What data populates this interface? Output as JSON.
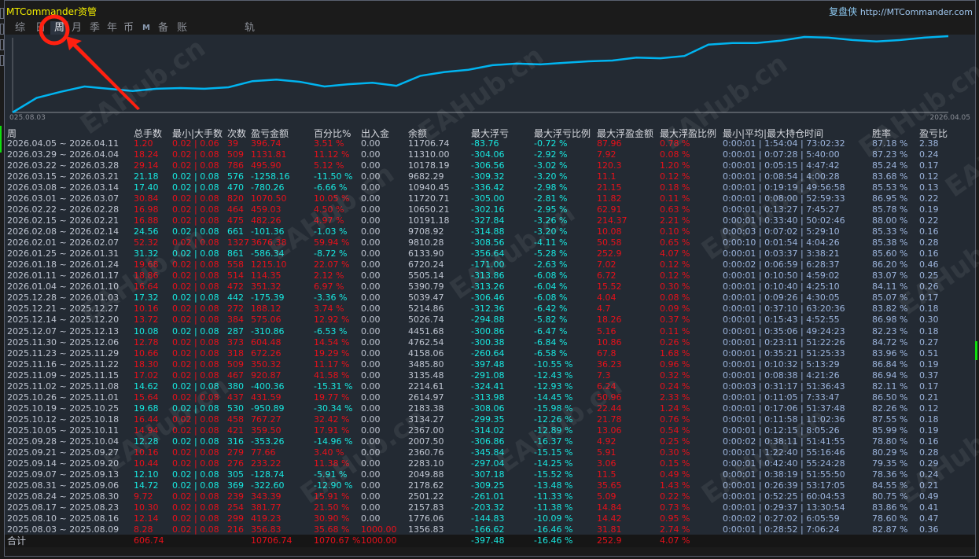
{
  "app": {
    "title": "MTCommander资管",
    "brand": "复盘侠",
    "url": "http://MTCommander.com"
  },
  "tabs": [
    {
      "label": "综",
      "active": false
    },
    {
      "label": "日",
      "active": false
    },
    {
      "label": "周",
      "active": true
    },
    {
      "label": "月",
      "active": false
    },
    {
      "label": "季",
      "active": false
    },
    {
      "label": "年",
      "active": false
    },
    {
      "label": "币",
      "active": false
    },
    {
      "label": "M",
      "active": false
    },
    {
      "label": "备",
      "active": false
    },
    {
      "label": "账户",
      "active": false
    },
    {
      "label": "轨迹",
      "active": false
    }
  ],
  "chart_data": {
    "type": "line",
    "color": "#00b4f0",
    "x_start_label": "025.08.03",
    "x_end_label": "2026.04.05",
    "values": [
      0,
      19,
      27,
      34,
      31,
      28,
      31,
      32,
      31,
      33,
      41,
      43,
      40,
      34,
      37,
      39,
      35,
      48,
      53,
      56,
      62,
      64,
      63,
      65,
      67,
      68,
      72,
      71,
      74,
      89,
      91,
      91,
      94,
      99,
      98,
      95,
      93,
      95,
      98,
      100
    ]
  },
  "colors": {
    "profit": "#e8101a",
    "loss": "#18e8e0",
    "accent": "#f5f000"
  },
  "watermark": "EAHub.cn",
  "table": {
    "headers": [
      "周",
      "总手数",
      "最小|大手数",
      "次数",
      "盈亏金额",
      "百分比%",
      "出入金",
      "余额",
      "最大浮亏",
      "最大浮亏比例",
      "最大浮盈金额",
      "最大浮盈比例",
      "最小|平均|最大持仓时间",
      "胜率",
      "盈亏比"
    ],
    "rows": [
      [
        "2026.04.05 ~ 2026.04.11",
        "1.20",
        "0.02 | 0.06",
        "39",
        "396.74",
        "3.51 %",
        "0.00",
        "11706.74",
        "-83.76",
        "-0.72 %",
        "87.96",
        "0.78 %",
        "0:00:01 | 1:54:04 | 73:02:32",
        "87.18 %",
        "2.38"
      ],
      [
        "2026.03.29 ~ 2026.04.04",
        "18.24",
        "0.02 | 0.08",
        "509",
        "1131.81",
        "11.12 %",
        "0.00",
        "11310.00",
        "-304.06",
        "-2.92 %",
        "7.92",
        "0.08 %",
        "0:00:01 | 0:07:28 | 5:40:00",
        "87.23 %",
        "0.24"
      ],
      [
        "2026.03.22 ~ 2026.03.28",
        "29.14",
        "0.02 | 0.08",
        "786",
        "495.90",
        "5.12 %",
        "0.00",
        "10178.19",
        "-306.56",
        "-3.02 %",
        "120.3",
        "1.20 %",
        "0:00:01 | 0:05:15 | 4:47:42",
        "85.24 %",
        "0.17"
      ],
      [
        "2026.03.15 ~ 2026.03.21",
        "21.18",
        "0.02 | 0.08",
        "576",
        "-1258.16",
        "-11.50 %",
        "0.00",
        "9682.29",
        "-309.32",
        "-3.20 %",
        "11.1",
        "0.12 %",
        "0:00:01 | 0:08:54 | 4:00:28",
        "83.68 %",
        "0.12"
      ],
      [
        "2026.03.08 ~ 2026.03.14",
        "17.40",
        "0.02 | 0.08",
        "470",
        "-780.26",
        "-6.66 %",
        "0.00",
        "10940.45",
        "-336.42",
        "-2.98 %",
        "21.15",
        "0.18 %",
        "0:00:01 | 0:19:19 | 49:56:58",
        "85.53 %",
        "0.13"
      ],
      [
        "2026.03.01 ~ 2026.03.07",
        "30.84",
        "0.02 | 0.08",
        "820",
        "1070.50",
        "10.05 %",
        "0.00",
        "11720.71",
        "-305.00",
        "-2.81 %",
        "11.82",
        "0.11 %",
        "0:00:01 | 0:08:00 | 52:59:33",
        "86.95 %",
        "0.22"
      ],
      [
        "2026.02.22 ~ 2026.02.28",
        "16.98",
        "0.02 | 0.08",
        "464",
        "459.03",
        "4.50 %",
        "0.00",
        "10650.21",
        "-302.16",
        "-2.95 %",
        "62.91",
        "0.63 %",
        "0:00:01 | 0:13:27 | 7:45:27",
        "85.78 %",
        "0.19"
      ],
      [
        "2026.02.15 ~ 2026.02.21",
        "16.88",
        "0.02 | 0.08",
        "475",
        "482.26",
        "4.97 %",
        "0.00",
        "10191.18",
        "-327.84",
        "-3.26 %",
        "214.37",
        "2.21 %",
        "0:00:01 | 0:33:40 | 50:02:46",
        "88.00 %",
        "0.22"
      ],
      [
        "2026.02.08 ~ 2026.02.14",
        "24.56",
        "0.02 | 0.08",
        "661",
        "-101.36",
        "-1.03 %",
        "0.00",
        "9708.92",
        "-314.88",
        "-3.20 %",
        "10.08",
        "0.10 %",
        "0:00:03 | 0:07:02 | 5:29:10",
        "85.33 %",
        "0.16"
      ],
      [
        "2026.02.01 ~ 2026.02.07",
        "52.32",
        "0.02 | 0.08",
        "1327",
        "3676.38",
        "59.94 %",
        "0.00",
        "9810.28",
        "-308.56",
        "-4.11 %",
        "50.58",
        "0.65 %",
        "0:00:10 | 0:01:54 | 4:04:26",
        "85.38 %",
        "0.28"
      ],
      [
        "2026.01.25 ~ 2026.01.31",
        "31.32",
        "0.02 | 0.08",
        "861",
        "-586.34",
        "-8.72 %",
        "0.00",
        "6133.90",
        "-356.64",
        "-5.28 %",
        "252.9",
        "4.07 %",
        "0:00:01 | 0:03:37 | 3:38:21",
        "85.60 %",
        "0.16"
      ],
      [
        "2026.01.18 ~ 2026.01.24",
        "19.68",
        "0.02 | 0.08",
        "558",
        "1215.10",
        "22.07 %",
        "0.00",
        "6720.24",
        "-171.00",
        "-2.63 %",
        "7.02",
        "0.12 %",
        "0:00:02 | 0:06:59 | 6:28:37",
        "86.20 %",
        "0.46"
      ],
      [
        "2026.01.11 ~ 2026.01.17",
        "18.86",
        "0.02 | 0.08",
        "514",
        "114.35",
        "2.12 %",
        "0.00",
        "5505.14",
        "-313.86",
        "-6.08 %",
        "6.72",
        "0.12 %",
        "0:00:01 | 0:10:50 | 4:59:02",
        "83.07 %",
        "0.25"
      ],
      [
        "2026.01.04 ~ 2026.01.10",
        "16.64",
        "0.02 | 0.08",
        "472",
        "351.32",
        "6.97 %",
        "0.00",
        "5390.79",
        "-313.26",
        "-6.04 %",
        "15.52",
        "0.30 %",
        "0:00:01 | 0:10:40 | 4:25:10",
        "84.11 %",
        "0.26"
      ],
      [
        "2025.12.28 ~ 2026.01.03",
        "17.32",
        "0.02 | 0.08",
        "442",
        "-175.39",
        "-3.36 %",
        "0.00",
        "5039.47",
        "-306.46",
        "-6.08 %",
        "4.04",
        "0.08 %",
        "0:00:01 | 0:09:26 | 4:30:05",
        "85.07 %",
        "0.17"
      ],
      [
        "2025.12.21 ~ 2025.12.27",
        "10.16",
        "0.02 | 0.08",
        "272",
        "188.12",
        "3.74 %",
        "0.00",
        "5214.86",
        "-312.36",
        "-6.42 %",
        "4.7",
        "0.09 %",
        "0:00:01 | 0:37:10 | 63:20:36",
        "83.82 %",
        "0.18"
      ],
      [
        "2025.12.14 ~ 2025.12.20",
        "13.72",
        "0.02 | 0.08",
        "384",
        "575.06",
        "12.92 %",
        "0.00",
        "5026.74",
        "-294.88",
        "-5.82 %",
        "18.26",
        "0.37 %",
        "0:00:01 | 0:15:43 | 4:52:55",
        "86.98 %",
        "0.30"
      ],
      [
        "2025.12.07 ~ 2025.12.13",
        "10.08",
        "0.02 | 0.08",
        "287",
        "-310.86",
        "-6.53 %",
        "0.00",
        "4451.68",
        "-300.86",
        "-6.47 %",
        "5.16",
        "0.11 %",
        "0:00:01 | 0:35:06 | 49:24:23",
        "82.23 %",
        "0.18"
      ],
      [
        "2025.11.30 ~ 2025.12.06",
        "12.78",
        "0.02 | 0.08",
        "373",
        "604.48",
        "14.54 %",
        "0.00",
        "4762.54",
        "-300.38",
        "-6.84 %",
        "10.86",
        "0.26 %",
        "0:00:01 | 0:23:11 | 51:22:26",
        "84.72 %",
        "0.27"
      ],
      [
        "2025.11.23 ~ 2025.11.29",
        "10.66",
        "0.02 | 0.08",
        "318",
        "672.26",
        "19.29 %",
        "0.00",
        "4158.06",
        "-260.64",
        "-6.58 %",
        "67.8",
        "1.68 %",
        "0:00:01 | 0:35:21 | 51:25:33",
        "83.96 %",
        "0.51"
      ],
      [
        "2025.11.16 ~ 2025.11.22",
        "18.30",
        "0.02 | 0.08",
        "509",
        "350.32",
        "11.17 %",
        "0.00",
        "3485.80",
        "-397.48",
        "-10.55 %",
        "36.23",
        "0.96 %",
        "0:00:01 | 0:10:32 | 5:13:29",
        "86.84 %",
        "0.19"
      ],
      [
        "2025.11.09 ~ 2025.11.15",
        "17.02",
        "0.02 | 0.08",
        "467",
        "920.87",
        "41.58 %",
        "0.00",
        "3135.48",
        "-291.08",
        "-12.43 %",
        "7.3",
        "0.32 %",
        "0:00:01 | 0:08:38 | 4:21:26",
        "86.94 %",
        "0.37"
      ],
      [
        "2025.11.02 ~ 2025.11.08",
        "14.62",
        "0.02 | 0.08",
        "380",
        "-400.36",
        "-15.31 %",
        "0.00",
        "2214.61",
        "-324.41",
        "-12.93 %",
        "6.24",
        "0.24 %",
        "0:00:03 | 0:31:17 | 51:36:43",
        "82.11 %",
        "0.17"
      ],
      [
        "2025.10.26 ~ 2025.11.01",
        "15.64",
        "0.02 | 0.08",
        "437",
        "431.59",
        "19.77 %",
        "0.00",
        "2614.97",
        "-313.98",
        "-14.45 %",
        "50.96",
        "2.33 %",
        "0:00:01 | 0:11:05 | 7:33:47",
        "86.50 %",
        "0.21"
      ],
      [
        "2025.10.19 ~ 2025.10.25",
        "19.68",
        "0.02 | 0.08",
        "530",
        "-950.89",
        "-30.34 %",
        "0.00",
        "2183.38",
        "-308.06",
        "-15.98 %",
        "22.44",
        "1.24 %",
        "0:00:01 | 0:17:06 | 51:37:48",
        "82.26 %",
        "0.12"
      ],
      [
        "2025.10.12 ~ 2025.10.18",
        "16.44",
        "0.02 | 0.08",
        "458",
        "767.27",
        "32.42 %",
        "0.00",
        "3134.27",
        "-299.35",
        "-12.26 %",
        "21.78",
        "0.76 %",
        "0:00:01 | 0:11:58 | 11:02:36",
        "87.55 %",
        "0.18"
      ],
      [
        "2025.10.05 ~ 2025.10.11",
        "14.94",
        "0.02 | 0.08",
        "421",
        "359.50",
        "17.91 %",
        "0.00",
        "2367.00",
        "-314.02",
        "-12.89 %",
        "13.06",
        "0.54 %",
        "0:00:01 | 0:12:15 | 8:05:26",
        "85.99 %",
        "0.19"
      ],
      [
        "2025.09.28 ~ 2025.10.04",
        "12.28",
        "0.02 | 0.08",
        "316",
        "-353.26",
        "-14.96 %",
        "0.00",
        "2007.50",
        "-306.86",
        "-16.37 %",
        "4.92",
        "0.25 %",
        "0:00:02 | 0:38:11 | 51:41:55",
        "78.80 %",
        "0.16"
      ],
      [
        "2025.09.21 ~ 2025.09.27",
        "10.16",
        "0.02 | 0.08",
        "279",
        "77.66",
        "3.40 %",
        "0.00",
        "2360.76",
        "-345.84",
        "-15.15 %",
        "5.91",
        "0.30 %",
        "0:00:01 | 1:22:40 | 55:16:46",
        "80.29 %",
        "0.28"
      ],
      [
        "2025.09.14 ~ 2025.09.20",
        "10.44",
        "0.02 | 0.08",
        "276",
        "233.22",
        "11.38 %",
        "0.00",
        "2283.10",
        "-297.04",
        "-14.25 %",
        "3.06",
        "0.15 %",
        "0:00:01 | 0:42:40 | 55:24:28",
        "79.35 %",
        "0.29"
      ],
      [
        "2025.09.07 ~ 2025.09.13",
        "12.10",
        "0.02 | 0.08",
        "305",
        "-128.74",
        "-5.91 %",
        "0.00",
        "2049.88",
        "-307.18",
        "-15.52 %",
        "11.5",
        "0.49 %",
        "0:00:01 | 0:38:19 | 51:55:50",
        "78.36 %",
        "0.24"
      ],
      [
        "2025.08.31 ~ 2025.09.06",
        "14.72",
        "0.02 | 0.08",
        "369",
        "-322.60",
        "-12.90 %",
        "0.00",
        "2178.62",
        "-309.25",
        "-13.48 %",
        "35.65",
        "1.43 %",
        "0:00:01 | 0:26:39 | 53:17:05",
        "84.55 %",
        "0.21"
      ],
      [
        "2025.08.24 ~ 2025.08.30",
        "9.72",
        "0.02 | 0.08",
        "239",
        "343.39",
        "15.91 %",
        "0.00",
        "2501.22",
        "-261.01",
        "-11.33 %",
        "5.09",
        "0.22 %",
        "0:00:01 | 0:52:25 | 60:04:53",
        "80.75 %",
        "0.49"
      ],
      [
        "2025.08.17 ~ 2025.08.23",
        "10.30",
        "0.02 | 0.08",
        "254",
        "381.77",
        "21.50 %",
        "0.00",
        "2157.83",
        "-203.32",
        "-11.38 %",
        "14.84",
        "0.73 %",
        "0:00:01 | 0:29:37 | 13:30:54",
        "83.86 %",
        "0.41"
      ],
      [
        "2025.08.10 ~ 2025.08.16",
        "12.14",
        "0.02 | 0.08",
        "299",
        "419.23",
        "30.90 %",
        "0.00",
        "1776.06",
        "-144.83",
        "-10.09 %",
        "14.42",
        "0.95 %",
        "0:00:02 | 0:27:02 | 6:05:59",
        "78.60 %",
        "0.47"
      ],
      [
        "2025.08.03 ~ 2025.08.09",
        "8.28",
        "0.02 | 0.08",
        "216",
        "356.83",
        "35.68 %",
        "1000.00",
        "1356.83",
        "-166.62",
        "-16.46 %",
        "31.81",
        "2.74 %",
        "0:00:01 | 0:28:52 | 7:06:24",
        "82.87 %",
        "0.36"
      ]
    ],
    "total": [
      "合计",
      "606.74",
      "",
      "",
      "10706.74",
      "1070.67 %",
      "1000.00",
      "",
      "-397.48",
      "-16.46 %",
      "252.9",
      "4.07 %",
      "",
      "",
      ""
    ]
  }
}
